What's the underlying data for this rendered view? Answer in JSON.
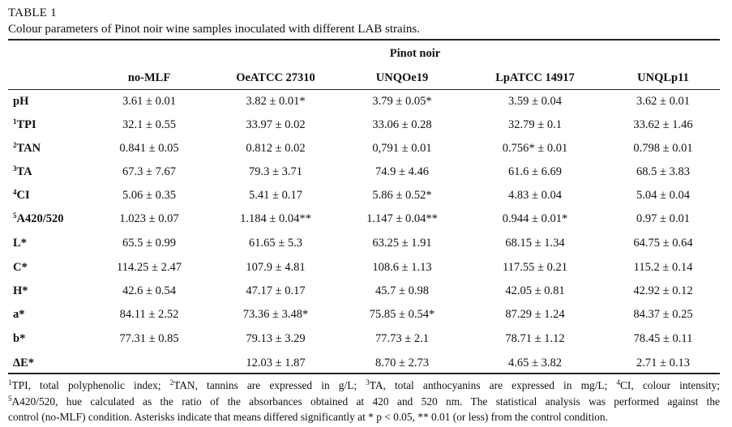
{
  "table_label": "TABLE 1",
  "caption": "Colour parameters of Pinot noir wine samples inoculated with different LAB strains.",
  "group_header": "Pinot noir",
  "columns": [
    "no-MLF",
    "OeATCC 27310",
    "UNQOe19",
    "LpATCC 14917",
    "UNQLp11"
  ],
  "rows": [
    {
      "sup": "",
      "label": "pH",
      "values": [
        "3.61 ± 0.01",
        "3.82 ± 0.01*",
        "3.79 ± 0.05*",
        "3.59 ± 0.04",
        "3.62 ± 0.01"
      ]
    },
    {
      "sup": "1",
      "label": "TPI",
      "values": [
        "32.1 ± 0.55",
        "33.97 ± 0.02",
        "33.06 ± 0.28",
        "32.79 ± 0.1",
        "33.62 ± 1.46"
      ]
    },
    {
      "sup": "2",
      "label": "TAN",
      "values": [
        "0.841 ± 0.05",
        "0.812 ± 0.02",
        "0,791 ± 0.01",
        "0.756* ± 0.01",
        "0.798 ± 0.01"
      ]
    },
    {
      "sup": "3",
      "label": "TA",
      "values": [
        "67.3 ± 7.67",
        "79.3 ± 3.71",
        "74.9 ± 4.46",
        "61.6 ± 6.69",
        "68.5 ± 3.83"
      ]
    },
    {
      "sup": "4",
      "label": "CI",
      "values": [
        "5.06 ± 0.35",
        "5.41 ± 0.17",
        "5.86 ± 0.52*",
        "4.83 ± 0.04",
        "5.04 ± 0.04"
      ]
    },
    {
      "sup": "5",
      "label": "A420/520",
      "values": [
        "1.023 ± 0.07",
        "1.184 ± 0.04**",
        "1.147 ± 0.04**",
        "0.944 ± 0.01*",
        "0.97 ± 0.01"
      ]
    },
    {
      "sup": "",
      "label": "L*",
      "values": [
        "65.5 ± 0.99",
        "61.65 ± 5.3",
        "63.25 ± 1.91",
        "68.15 ± 1.34",
        "64.75 ± 0.64"
      ]
    },
    {
      "sup": "",
      "label": "C*",
      "values": [
        "114.25 ± 2.47",
        "107.9 ± 4.81",
        "108.6 ± 1.13",
        "117.55 ± 0.21",
        "115.2 ± 0.14"
      ]
    },
    {
      "sup": "",
      "label": "H*",
      "values": [
        "42.6 ± 0.54",
        "47.17 ± 0.17",
        "45.7 ± 0.98",
        "42.05 ± 0.81",
        "42.92 ± 0.12"
      ]
    },
    {
      "sup": "",
      "label": "a*",
      "values": [
        "84.11 ± 2.52",
        "73.36 ± 3.48*",
        "75.85 ± 0.54*",
        "87.29 ± 1.24",
        "84.37 ± 0.25"
      ]
    },
    {
      "sup": "",
      "label": "b*",
      "values": [
        "77.31 ± 0.85",
        "79.13 ± 3.29",
        "77.73 ± 2.1",
        "78.71 ± 1.12",
        "78.45 ± 0.11"
      ]
    },
    {
      "sup": "",
      "label": "ΔE*",
      "values": [
        "",
        "12.03 ± 1.87",
        "8.70 ± 2.73",
        "4.65 ± 3.82",
        "2.71 ± 0.13"
      ]
    }
  ],
  "footnote": {
    "line1": [
      {
        "sup": "1",
        "text": "TPI, total polyphenolic index; "
      },
      {
        "sup": "2",
        "text": "TAN, tannins are expressed in g/L; "
      },
      {
        "sup": "3",
        "text": "TA, total anthocyanins are expressed in mg/L; "
      },
      {
        "sup": "4",
        "text": "CI, colour intensity;"
      }
    ],
    "line2": [
      {
        "sup": "5",
        "text": "A420/520, hue calculated as the ratio of the absorbances obtained at 420 and 520 nm. The statistical analysis was performed against the"
      }
    ],
    "line3": "control (no-MLF) condition. Asterisks indicate that means differed significantly at * p < 0.05, ** 0.01 (or less) from the control condition."
  }
}
